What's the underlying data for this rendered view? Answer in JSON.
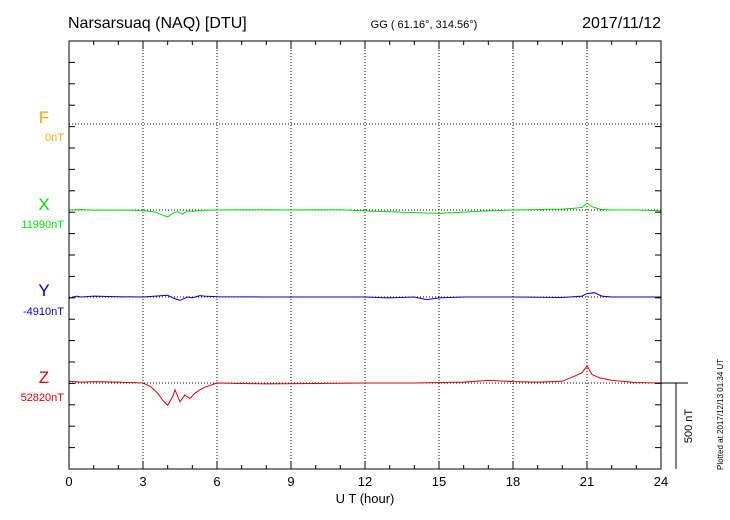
{
  "header": {
    "station": "Narsarsuaq (NAQ)  [DTU]",
    "coords": "GG ( 61.16°, 314.56°)",
    "date": "2017/11/12"
  },
  "footer": {
    "plotted": "Plotted at 2017/12/13 01:34 UT"
  },
  "colors": {
    "F": "#ffa500",
    "X": "#00dd00",
    "Y": "#0000cc",
    "Z": "#dd0000",
    "axis": "#000000",
    "grid": "#000000"
  },
  "chart_data": {
    "type": "line",
    "xlabel": "U T (hour)",
    "xlim": [
      0,
      24
    ],
    "xticks": [
      0,
      3,
      6,
      9,
      12,
      15,
      18,
      21,
      24
    ],
    "ylabel": "",
    "scale_bar": {
      "label": "500 nT",
      "value_nT": 500
    },
    "grid": true,
    "series": [
      {
        "name": "F",
        "baseline_label": "0nT",
        "baseline_nT": 0,
        "x": [],
        "values": []
      },
      {
        "name": "X",
        "baseline_label": "11990nT",
        "baseline_nT": 11990,
        "x": [
          0,
          0.5,
          1,
          2,
          3,
          3.5,
          3.8,
          4,
          4.2,
          4.4,
          4.6,
          4.8,
          5,
          5.5,
          6,
          7,
          8,
          9,
          10,
          11,
          12,
          13,
          14,
          15,
          16,
          17,
          18,
          19,
          20,
          20.5,
          20.8,
          21,
          21.2,
          21.5,
          22,
          23,
          24
        ],
        "values": [
          0,
          3,
          -2,
          0,
          -3,
          -12,
          -30,
          -40,
          -20,
          -10,
          -25,
          -5,
          -8,
          -2,
          0,
          2,
          1,
          0,
          1,
          2,
          -5,
          -10,
          -15,
          -20,
          -12,
          -5,
          0,
          3,
          5,
          10,
          15,
          40,
          20,
          5,
          0,
          0,
          -5
        ]
      },
      {
        "name": "Y",
        "baseline_label": "-4910nT",
        "baseline_nT": -4910,
        "x": [
          0,
          0.3,
          0.5,
          1,
          2,
          3,
          3.5,
          4,
          4.2,
          4.5,
          4.8,
          5,
          5.3,
          5.5,
          6,
          8,
          10,
          12,
          13,
          14,
          14.5,
          15,
          16,
          18,
          20,
          20.8,
          21,
          21.3,
          21.6,
          22,
          23,
          24
        ],
        "values": [
          -8,
          5,
          0,
          5,
          2,
          0,
          5,
          10,
          -5,
          -20,
          0,
          -5,
          8,
          5,
          2,
          0,
          0,
          0,
          -5,
          0,
          -15,
          -5,
          0,
          0,
          -3,
          5,
          20,
          25,
          5,
          0,
          0,
          0
        ]
      },
      {
        "name": "Z",
        "baseline_label": "52820nT",
        "baseline_nT": 52820,
        "x": [
          0,
          0.5,
          1,
          2,
          3,
          3.3,
          3.6,
          3.8,
          4,
          4.2,
          4.3,
          4.5,
          4.7,
          4.9,
          5.1,
          5.3,
          5.5,
          5.8,
          6,
          8,
          10,
          12,
          14,
          16,
          17,
          18,
          19,
          20,
          20.5,
          20.8,
          21,
          21.2,
          21.5,
          22,
          23,
          24
        ],
        "values": [
          10,
          5,
          8,
          5,
          0,
          -20,
          -60,
          -100,
          -130,
          -80,
          -40,
          -110,
          -70,
          -90,
          -60,
          -40,
          -25,
          -10,
          0,
          -5,
          -3,
          0,
          0,
          5,
          15,
          8,
          5,
          10,
          40,
          60,
          100,
          50,
          30,
          15,
          3,
          0
        ]
      }
    ]
  }
}
